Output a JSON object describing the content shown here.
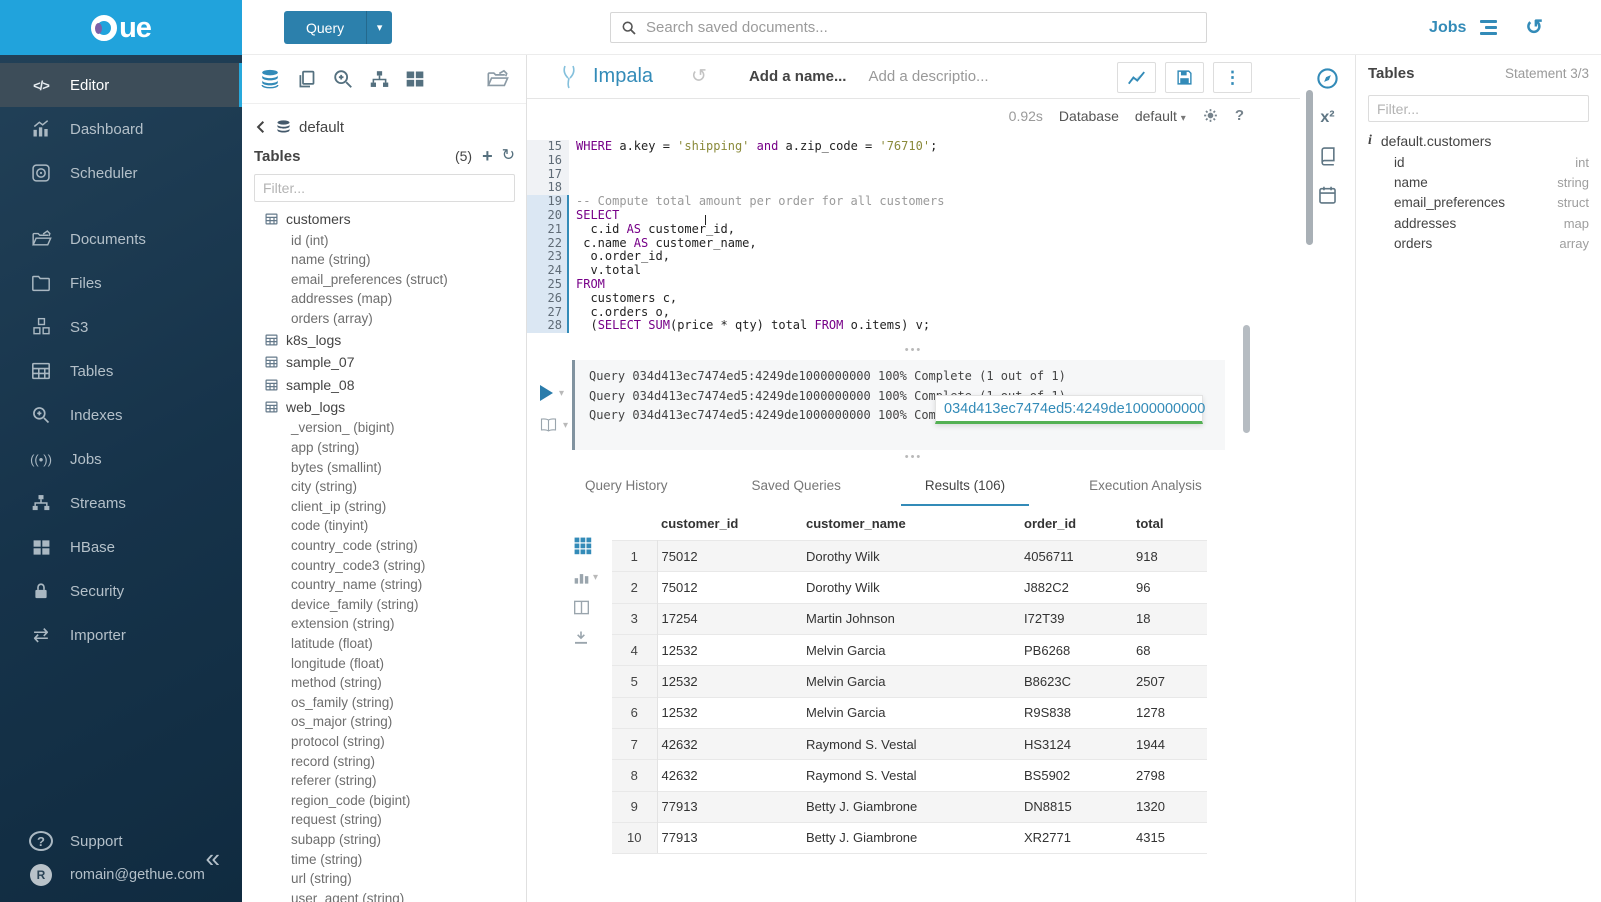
{
  "colors": {
    "accent": "#338bb8",
    "brand_top": "#21a3dc",
    "sidebar_dark": "#16334a",
    "progress_green": "#54b154",
    "keyword": "#770088",
    "string": "#8a8a3a",
    "comment": "#9a9a9a"
  },
  "brand": {
    "logo_text": "ue"
  },
  "topbar": {
    "query_button": "Query",
    "search_placeholder": "Search saved documents...",
    "jobs_label": "Jobs"
  },
  "sidebar": {
    "items": [
      {
        "label": "Editor",
        "icon": "code-icon",
        "active": true
      },
      {
        "label": "Dashboard",
        "icon": "dashboard-icon"
      },
      {
        "label": "Scheduler",
        "icon": "scheduler-icon"
      },
      {
        "label": "Documents",
        "icon": "documents-icon"
      },
      {
        "label": "Files",
        "icon": "folder-icon"
      },
      {
        "label": "S3",
        "icon": "cubes-icon"
      },
      {
        "label": "Tables",
        "icon": "table-icon"
      },
      {
        "label": "Indexes",
        "icon": "search-plus-icon"
      },
      {
        "label": "Jobs",
        "icon": "broadcast-icon"
      },
      {
        "label": "Streams",
        "icon": "sitemap-icon"
      },
      {
        "label": "HBase",
        "icon": "blocks-icon"
      },
      {
        "label": "Security",
        "icon": "lock-icon"
      },
      {
        "label": "Importer",
        "icon": "exchange-icon"
      }
    ],
    "footer": {
      "support": "Support",
      "user": "romain@gethue.com",
      "avatar_letter": "R",
      "collapse_icon": "chevrons-left-icon"
    }
  },
  "left_assist": {
    "action_icons": [
      "database-icon",
      "copy-icon",
      "search-plus-icon",
      "sitemap-icon",
      "grid-icon",
      "folder-open-icon"
    ],
    "breadcrumb": "default",
    "header": "Tables",
    "count": "(5)",
    "filter_placeholder": "Filter...",
    "tree": [
      {
        "name": "customers",
        "columns": [
          "id (int)",
          "name (string)",
          "email_preferences (struct)",
          "addresses (map)",
          "orders (array)"
        ]
      },
      {
        "name": "k8s_logs",
        "columns": []
      },
      {
        "name": "sample_07",
        "columns": []
      },
      {
        "name": "sample_08",
        "columns": []
      },
      {
        "name": "web_logs",
        "columns": [
          "_version_ (bigint)",
          "app (string)",
          "bytes (smallint)",
          "city (string)",
          "client_ip (string)",
          "code (tinyint)",
          "country_code (string)",
          "country_code3 (string)",
          "country_name (string)",
          "device_family (string)",
          "extension (string)",
          "latitude (float)",
          "longitude (float)",
          "method (string)",
          "os_family (string)",
          "os_major (string)",
          "protocol (string)",
          "record (string)",
          "referer (string)",
          "region_code (bigint)",
          "request (string)",
          "subapp (string)",
          "time (string)",
          "url (string)",
          "user_agent (string)"
        ]
      }
    ]
  },
  "editor": {
    "engine": "Impala",
    "name_placeholder": "Add a name...",
    "description_placeholder": "Add a descriptio...",
    "exec_time": "0.92s",
    "database_label": "Database",
    "database_value": "default",
    "code_lines": [
      {
        "n": 15,
        "tokens": [
          [
            "kw",
            "WHERE"
          ],
          [
            "pl",
            " a.key = "
          ],
          [
            "str",
            "'shipping'"
          ],
          [
            "pl",
            " "
          ],
          [
            "kw",
            "and"
          ],
          [
            "pl",
            " a.zip_code = "
          ],
          [
            "str",
            "'76710'"
          ],
          [
            "pl",
            ";"
          ]
        ],
        "active": false
      },
      {
        "n": 16,
        "tokens": [],
        "active": false
      },
      {
        "n": 17,
        "tokens": [],
        "active": false
      },
      {
        "n": 18,
        "tokens": [],
        "active": false
      },
      {
        "n": 19,
        "tokens": [
          [
            "cmt",
            "-- Compute total amount per order for all customers"
          ]
        ],
        "active": true
      },
      {
        "n": 20,
        "tokens": [
          [
            "kw",
            "SELECT"
          ]
        ],
        "active": true
      },
      {
        "n": 21,
        "tokens": [
          [
            "pl",
            "  c.id "
          ],
          [
            "kw",
            "AS"
          ],
          [
            "pl",
            " customer_id,"
          ]
        ],
        "active": true
      },
      {
        "n": 22,
        "tokens": [
          [
            "pl",
            " c.name "
          ],
          [
            "kw",
            "AS"
          ],
          [
            "pl",
            " customer_name,"
          ]
        ],
        "active": true
      },
      {
        "n": 23,
        "tokens": [
          [
            "pl",
            "  o.order_id,"
          ]
        ],
        "active": true
      },
      {
        "n": 24,
        "tokens": [
          [
            "pl",
            "  v.total"
          ]
        ],
        "active": true
      },
      {
        "n": 25,
        "tokens": [
          [
            "kw",
            "FROM"
          ]
        ],
        "active": true
      },
      {
        "n": 26,
        "tokens": [
          [
            "pl",
            "  customers c,"
          ]
        ],
        "active": true
      },
      {
        "n": 27,
        "tokens": [
          [
            "pl",
            "  c.orders o,"
          ]
        ],
        "active": true
      },
      {
        "n": 28,
        "tokens": [
          [
            "pl",
            "  ("
          ],
          [
            "kw",
            "SELECT"
          ],
          [
            "pl",
            " "
          ],
          [
            "kw",
            "SUM"
          ],
          [
            "pl",
            "(price * qty) total "
          ],
          [
            "kw",
            "FROM"
          ],
          [
            "pl",
            " o.items) v;"
          ]
        ],
        "active": true
      }
    ]
  },
  "log": {
    "lines": [
      "Query 034d413ec7474ed5:4249de1000000000 100% Complete (1 out of 1)",
      "Query 034d413ec7474ed5:4249de1000000000 100% Complete (1 out of 1)",
      "Query 034d413ec7474ed5:4249de1000000000 100% Complete (1 out of 1)"
    ],
    "job_id": "034d413ec7474ed5:4249de1000000000"
  },
  "tabs": [
    {
      "label": "Query History",
      "active": false
    },
    {
      "label": "Saved Queries",
      "active": false
    },
    {
      "label": "Results (106)",
      "active": true
    },
    {
      "label": "Execution Analysis",
      "active": false
    }
  ],
  "results": {
    "columns": [
      "customer_id",
      "customer_name",
      "order_id",
      "total"
    ],
    "rows": [
      [
        "1",
        "75012",
        "Dorothy Wilk",
        "4056711",
        "918"
      ],
      [
        "2",
        "75012",
        "Dorothy Wilk",
        "J882C2",
        "96"
      ],
      [
        "3",
        "17254",
        "Martin Johnson",
        "I72T39",
        "18"
      ],
      [
        "4",
        "12532",
        "Melvin Garcia",
        "PB6268",
        "68"
      ],
      [
        "5",
        "12532",
        "Melvin Garcia",
        "B8623C",
        "2507"
      ],
      [
        "6",
        "12532",
        "Melvin Garcia",
        "R9S838",
        "1278"
      ],
      [
        "7",
        "42632",
        "Raymond S. Vestal",
        "HS3124",
        "1944"
      ],
      [
        "8",
        "42632",
        "Raymond S. Vestal",
        "BS5902",
        "2798"
      ],
      [
        "9",
        "77913",
        "Betty J. Giambrone",
        "DN8815",
        "1320"
      ],
      [
        "10",
        "77913",
        "Betty J. Giambrone",
        "XR2771",
        "4315"
      ]
    ],
    "side_icons": [
      "grid-icon",
      "bar-chart-icon",
      "columns-icon",
      "download-icon"
    ]
  },
  "right_assist": {
    "strip_icons": [
      "compass-icon",
      "functions-x2-icon",
      "language-reference-icon",
      "calendar-icon"
    ],
    "title": "Tables",
    "statement": "Statement 3/3",
    "filter_placeholder": "Filter...",
    "table": "default.customers",
    "columns": [
      {
        "name": "id",
        "type": "int"
      },
      {
        "name": "name",
        "type": "string"
      },
      {
        "name": "email_preferences",
        "type": "struct"
      },
      {
        "name": "addresses",
        "type": "map"
      },
      {
        "name": "orders",
        "type": "array"
      }
    ]
  }
}
